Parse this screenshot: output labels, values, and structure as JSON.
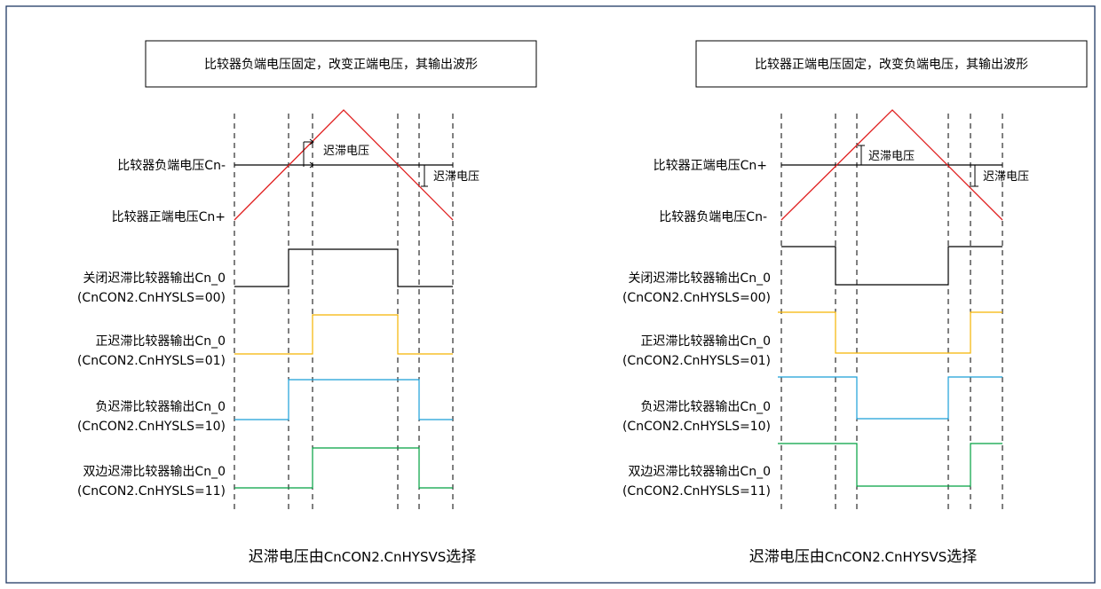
{
  "colors": {
    "frame": "#1f3864",
    "threshold": "#000000",
    "ramp": "#e02020",
    "off": "#000000",
    "positive": "#f5b400",
    "negative": "#1a9fd8",
    "double": "#00a040",
    "dashed": "#000000"
  },
  "left": {
    "title": "比较器负端电压固定，改变正端电压，其输出波形",
    "fixed_label": "比较器负端电压Cn-",
    "varied_label": "比较器正端电压Cn+",
    "hyst_label_1": "迟滞电压",
    "hyst_label_2": "迟滞电压",
    "outputs": [
      {
        "name": "关闭迟滞比较器输出Cn_0",
        "reg": "(CnCON2.CnHYSLS=00)"
      },
      {
        "name": "正迟滞比较器输出Cn_0",
        "reg": "(CnCON2.CnHYSLS=01)"
      },
      {
        "name": "负迟滞比较器输出Cn_0",
        "reg": "(CnCON2.CnHYSLS=10)"
      },
      {
        "name": "双边迟滞比较器输出Cn_0",
        "reg": "(CnCON2.CnHYSLS=11)"
      }
    ],
    "caption_prefix": "迟滞电压由",
    "caption_reg": "CnCON2.CnHYSVS",
    "caption_suffix": "选择"
  },
  "right": {
    "title": "比较器正端电压固定，改变负端电压，其输出波形",
    "fixed_label": "比较器正端电压Cn+",
    "varied_label": "比较器负端电压Cn-",
    "hyst_label_1": "迟滞电压",
    "hyst_label_2": "迟滞电压",
    "outputs": [
      {
        "name": "关闭迟滞比较器输出Cn_0",
        "reg": "(CnCON2.CnHYSLS=00)"
      },
      {
        "name": "正迟滞比较器输出Cn_0",
        "reg": "(CnCON2.CnHYSLS=01)"
      },
      {
        "name": "负迟滞比较器输出Cn_0",
        "reg": "(CnCON2.CnHYSLS=10)"
      },
      {
        "name": "双边迟滞比较器输出Cn_0",
        "reg": "(CnCON2.CnHYSLS=11)"
      }
    ],
    "caption_prefix": "迟滞电压由",
    "caption_reg": "CnCON2.CnHYSVS",
    "caption_suffix": "选择"
  }
}
